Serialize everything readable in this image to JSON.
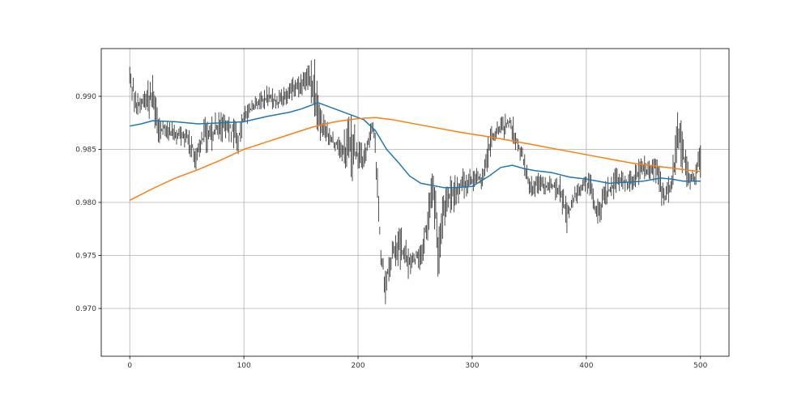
{
  "chart_data": {
    "type": "line",
    "title": "",
    "xlabel": "",
    "ylabel": "",
    "xlim": [
      -25,
      525
    ],
    "ylim": [
      0.9655,
      0.9945
    ],
    "grid": true,
    "x_ticks": [
      0,
      100,
      200,
      300,
      400,
      500
    ],
    "y_ticks": [
      0.97,
      0.975,
      0.98,
      0.985,
      0.99
    ],
    "x_tick_labels": [
      "0",
      "100",
      "200",
      "300",
      "400",
      "500"
    ],
    "y_tick_labels": [
      "0.970",
      "0.975",
      "0.980",
      "0.985",
      "0.990"
    ],
    "price_range_anchors": {
      "x": [
        0,
        2,
        5,
        10,
        15,
        20,
        25,
        30,
        40,
        50,
        55,
        58,
        65,
        75,
        85,
        95,
        100,
        110,
        120,
        130,
        140,
        150,
        155,
        160,
        162,
        165,
        170,
        175,
        180,
        185,
        190,
        195,
        200,
        205,
        210,
        213,
        215,
        218,
        220,
        222,
        224,
        226,
        230,
        235,
        240,
        245,
        250,
        255,
        260,
        265,
        268,
        270,
        275,
        280,
        285,
        290,
        295,
        300,
        305,
        310,
        313,
        315,
        320,
        325,
        330,
        333,
        335,
        340,
        345,
        350,
        355,
        360,
        365,
        370,
        375,
        380,
        383,
        385,
        390,
        395,
        400,
        405,
        408,
        410,
        415,
        420,
        425,
        430,
        435,
        440,
        445,
        450,
        455,
        460,
        465,
        468,
        470,
        475,
        480,
        482,
        485,
        490,
        495,
        500
      ],
      "low": [
        0.9905,
        0.9895,
        0.988,
        0.9885,
        0.988,
        0.9875,
        0.9855,
        0.986,
        0.9855,
        0.985,
        0.9838,
        0.983,
        0.9845,
        0.985,
        0.986,
        0.9845,
        0.987,
        0.988,
        0.989,
        0.9885,
        0.9895,
        0.99,
        0.9905,
        0.9885,
        0.9875,
        0.986,
        0.9855,
        0.985,
        0.9845,
        0.984,
        0.983,
        0.982,
        0.9822,
        0.983,
        0.985,
        0.986,
        0.984,
        0.9775,
        0.974,
        0.9735,
        0.9695,
        0.9722,
        0.9735,
        0.974,
        0.973,
        0.9725,
        0.974,
        0.9735,
        0.976,
        0.978,
        0.976,
        0.9722,
        0.9775,
        0.979,
        0.979,
        0.9805,
        0.98,
        0.981,
        0.981,
        0.981,
        0.9825,
        0.984,
        0.9855,
        0.986,
        0.986,
        0.9865,
        0.9855,
        0.9845,
        0.983,
        0.9805,
        0.9805,
        0.981,
        0.9805,
        0.9805,
        0.98,
        0.978,
        0.977,
        0.978,
        0.9795,
        0.98,
        0.981,
        0.98,
        0.978,
        0.977,
        0.979,
        0.9795,
        0.98,
        0.981,
        0.981,
        0.981,
        0.9815,
        0.982,
        0.9815,
        0.982,
        0.98,
        0.979,
        0.9795,
        0.9805,
        0.9825,
        0.984,
        0.982,
        0.981,
        0.9815,
        0.982
      ],
      "high": [
        0.993,
        0.9925,
        0.9905,
        0.99,
        0.9915,
        0.992,
        0.9885,
        0.988,
        0.9875,
        0.987,
        0.9865,
        0.9855,
        0.988,
        0.9885,
        0.9885,
        0.9875,
        0.989,
        0.99,
        0.991,
        0.9905,
        0.9915,
        0.9925,
        0.993,
        0.9935,
        0.9935,
        0.9905,
        0.9885,
        0.987,
        0.9865,
        0.986,
        0.9875,
        0.9895,
        0.986,
        0.9855,
        0.9875,
        0.988,
        0.987,
        0.9825,
        0.976,
        0.975,
        0.974,
        0.975,
        0.9765,
        0.9775,
        0.978,
        0.976,
        0.9755,
        0.976,
        0.9795,
        0.984,
        0.982,
        0.9805,
        0.981,
        0.9825,
        0.983,
        0.983,
        0.9835,
        0.983,
        0.9835,
        0.9835,
        0.9865,
        0.987,
        0.9875,
        0.988,
        0.9885,
        0.989,
        0.9885,
        0.9865,
        0.985,
        0.983,
        0.9825,
        0.983,
        0.9825,
        0.9825,
        0.9825,
        0.9825,
        0.98,
        0.9805,
        0.9815,
        0.982,
        0.983,
        0.9825,
        0.9805,
        0.9805,
        0.982,
        0.9825,
        0.9835,
        0.983,
        0.983,
        0.983,
        0.984,
        0.9845,
        0.9845,
        0.985,
        0.983,
        0.9815,
        0.982,
        0.9835,
        0.9885,
        0.989,
        0.986,
        0.9835,
        0.983,
        0.986
      ]
    },
    "series": [
      {
        "name": "",
        "color": "#1f77b4",
        "x": [
          0,
          10,
          20,
          40,
          60,
          80,
          100,
          120,
          140,
          150,
          160,
          165,
          175,
          190,
          205,
          215,
          225,
          235,
          245,
          255,
          265,
          275,
          285,
          300,
          315,
          325,
          335,
          345,
          355,
          370,
          385,
          400,
          410,
          420,
          435,
          450,
          465,
          475,
          485,
          500
        ],
        "y": [
          0.9872,
          0.9874,
          0.9877,
          0.9876,
          0.9874,
          0.9875,
          0.9876,
          0.9881,
          0.9885,
          0.9888,
          0.9892,
          0.9894,
          0.989,
          0.9884,
          0.9878,
          0.9868,
          0.985,
          0.9838,
          0.9825,
          0.9818,
          0.9816,
          0.9814,
          0.9814,
          0.9815,
          0.9825,
          0.9833,
          0.9835,
          0.9832,
          0.983,
          0.9828,
          0.9824,
          0.9822,
          0.982,
          0.9818,
          0.9819,
          0.982,
          0.9823,
          0.9822,
          0.982,
          0.982
        ]
      },
      {
        "name": "",
        "color": "#ff7f0e",
        "x": [
          0,
          20,
          40,
          60,
          80,
          100,
          120,
          140,
          160,
          180,
          200,
          215,
          230,
          260,
          290,
          320,
          350,
          380,
          410,
          440,
          470,
          500
        ],
        "y": [
          0.9802,
          0.9813,
          0.9823,
          0.9831,
          0.984,
          0.985,
          0.9857,
          0.9864,
          0.9871,
          0.9876,
          0.9879,
          0.988,
          0.9878,
          0.9872,
          0.9866,
          0.9861,
          0.9855,
          0.9849,
          0.9843,
          0.9837,
          0.9833,
          0.9829
        ]
      }
    ]
  }
}
